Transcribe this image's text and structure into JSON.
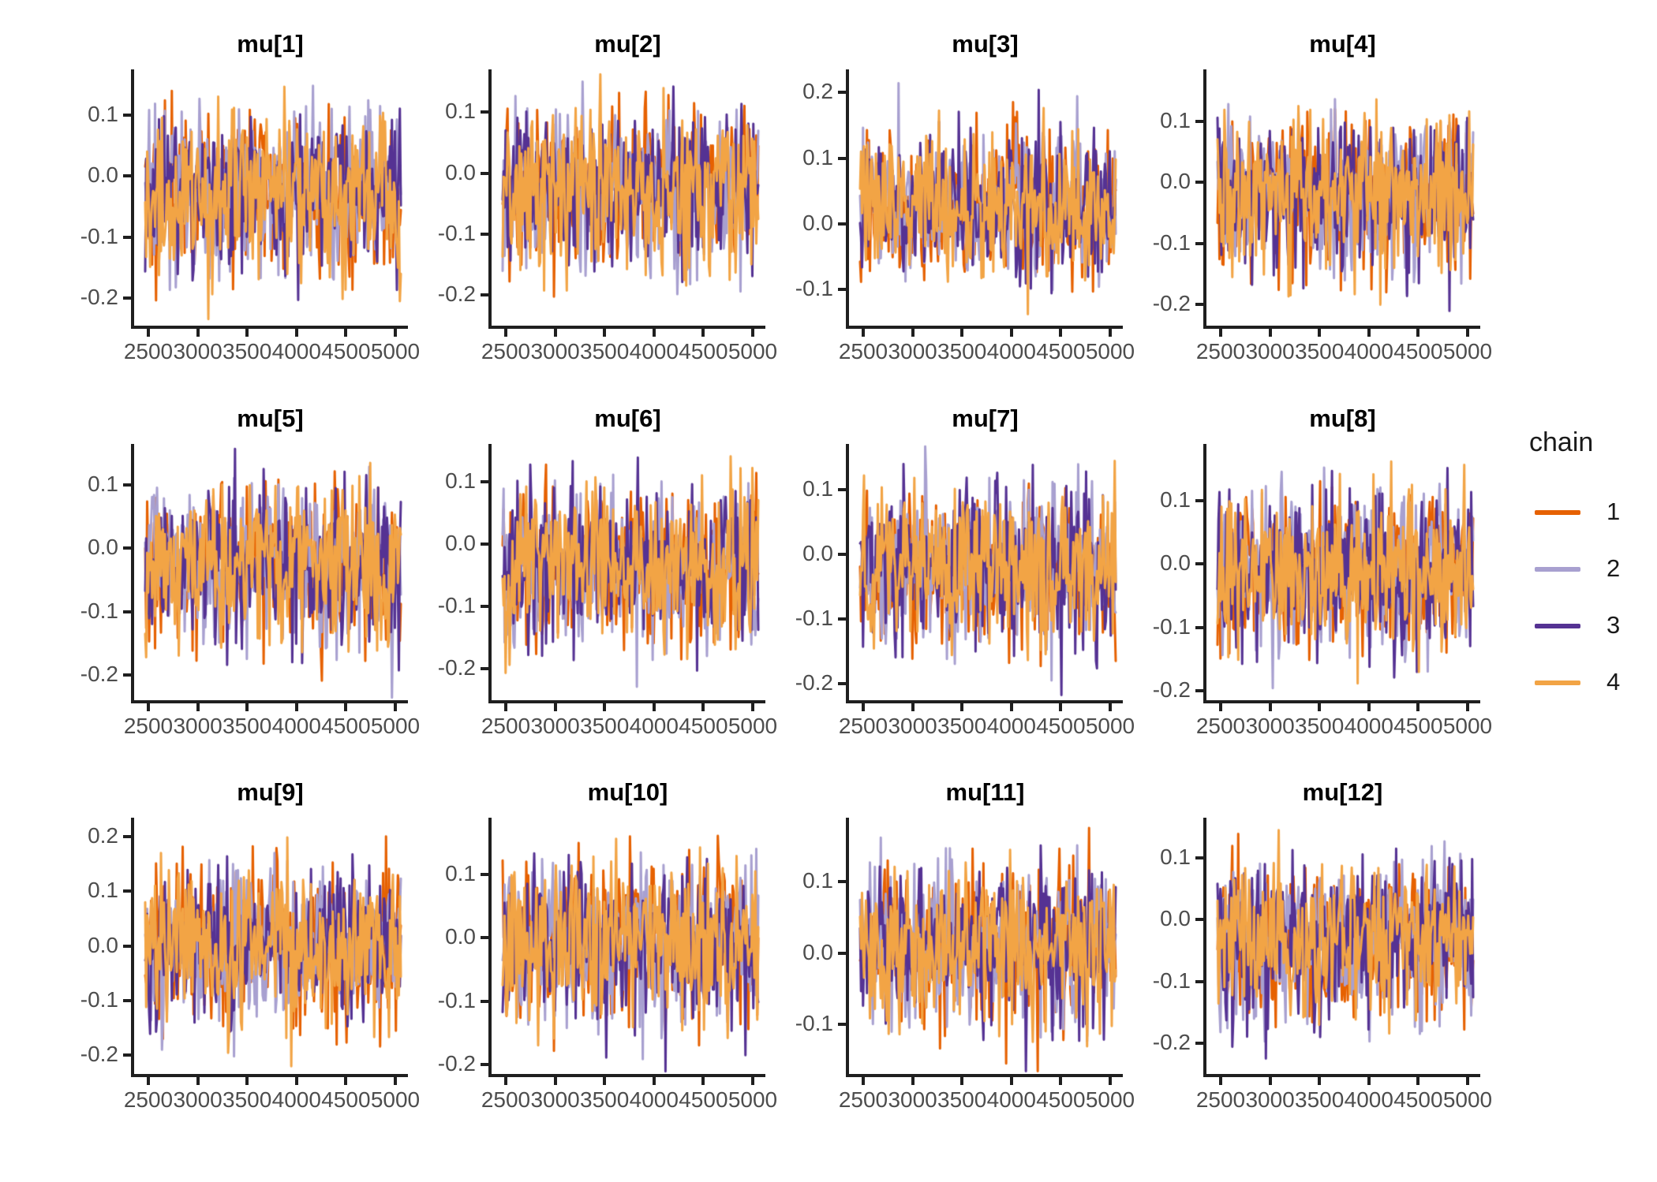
{
  "figure": {
    "background": "#FFFFFF",
    "axis_color": "#1F1F1F",
    "tick_label_color": "#4D4D4D",
    "title_color": "#000000"
  },
  "legend": {
    "title": "chain",
    "entries": [
      {
        "label": "1",
        "color": "#E66101"
      },
      {
        "label": "2",
        "color": "#A8A0D0"
      },
      {
        "label": "3",
        "color": "#553293"
      },
      {
        "label": "4",
        "color": "#F2A445"
      }
    ]
  },
  "chart_data": {
    "type": "line",
    "kind": "mcmc-trace-facet-grid",
    "grid": {
      "rows": 3,
      "cols": 4
    },
    "n_chains": 4,
    "x": {
      "label": "",
      "range": [
        2500,
        5000
      ],
      "ticks": [
        2500,
        3000,
        3500,
        4000,
        4500,
        5000
      ]
    },
    "panels": [
      {
        "title": "mu[1]",
        "y_ticks": [
          0.1,
          0.0,
          -0.1,
          -0.2
        ],
        "ylim": [
          -0.245,
          0.175
        ],
        "center": -0.02,
        "dense_band": 0.085,
        "extremes": [
          -0.23,
          0.165
        ],
        "seed": 3
      },
      {
        "title": "mu[2]",
        "y_ticks": [
          0.1,
          0.0,
          -0.1,
          -0.2
        ],
        "ylim": [
          -0.25,
          0.17
        ],
        "center": -0.02,
        "dense_band": 0.085,
        "extremes": [
          -0.235,
          0.16
        ],
        "seed": 7
      },
      {
        "title": "mu[3]",
        "y_ticks": [
          0.2,
          0.1,
          0.0,
          -0.1
        ],
        "ylim": [
          -0.155,
          0.235
        ],
        "center": 0.02,
        "dense_band": 0.085,
        "extremes": [
          -0.14,
          0.215
        ],
        "seed": 11
      },
      {
        "title": "mu[4]",
        "y_ticks": [
          0.1,
          0.0,
          -0.1,
          -0.2
        ],
        "ylim": [
          -0.235,
          0.185
        ],
        "center": -0.015,
        "dense_band": 0.085,
        "extremes": [
          -0.22,
          0.17
        ],
        "seed": 19
      },
      {
        "title": "mu[5]",
        "y_ticks": [
          0.1,
          0.0,
          -0.1,
          -0.2
        ],
        "ylim": [
          -0.24,
          0.165
        ],
        "center": -0.025,
        "dense_band": 0.085,
        "extremes": [
          -0.225,
          0.155
        ],
        "seed": 23
      },
      {
        "title": "mu[6]",
        "y_ticks": [
          0.1,
          0.0,
          -0.1,
          -0.2
        ],
        "ylim": [
          -0.25,
          0.16
        ],
        "center": -0.03,
        "dense_band": 0.085,
        "extremes": [
          -0.235,
          0.15
        ],
        "seed": 31
      },
      {
        "title": "mu[7]",
        "y_ticks": [
          0.1,
          0.0,
          -0.1,
          -0.2
        ],
        "ylim": [
          -0.225,
          0.17
        ],
        "center": -0.02,
        "dense_band": 0.085,
        "extremes": [
          -0.21,
          0.16
        ],
        "seed": 41
      },
      {
        "title": "mu[8]",
        "y_ticks": [
          0.1,
          0.0,
          -0.1,
          -0.2
        ],
        "ylim": [
          -0.215,
          0.19
        ],
        "center": -0.01,
        "dense_band": 0.085,
        "extremes": [
          -0.2,
          0.175
        ],
        "seed": 47
      },
      {
        "title": "mu[9]",
        "y_ticks": [
          0.2,
          0.1,
          0.0,
          -0.1,
          -0.2
        ],
        "ylim": [
          -0.235,
          0.235
        ],
        "center": 0.0,
        "dense_band": 0.09,
        "extremes": [
          -0.215,
          0.22
        ],
        "seed": 59
      },
      {
        "title": "mu[10]",
        "y_ticks": [
          0.1,
          0.0,
          -0.1,
          -0.2
        ],
        "ylim": [
          -0.215,
          0.19
        ],
        "center": -0.005,
        "dense_band": 0.085,
        "extremes": [
          -0.2,
          0.178
        ],
        "seed": 67
      },
      {
        "title": "mu[11]",
        "y_ticks": [
          0.1,
          0.0,
          -0.1
        ],
        "ylim": [
          -0.17,
          0.19
        ],
        "center": 0.01,
        "dense_band": 0.085,
        "extremes": [
          -0.155,
          0.175
        ],
        "seed": 73
      },
      {
        "title": "mu[12]",
        "y_ticks": [
          0.1,
          0.0,
          -0.1,
          -0.2
        ],
        "ylim": [
          -0.25,
          0.165
        ],
        "center": -0.03,
        "dense_band": 0.085,
        "extremes": [
          -0.235,
          0.15
        ],
        "seed": 83
      }
    ]
  }
}
